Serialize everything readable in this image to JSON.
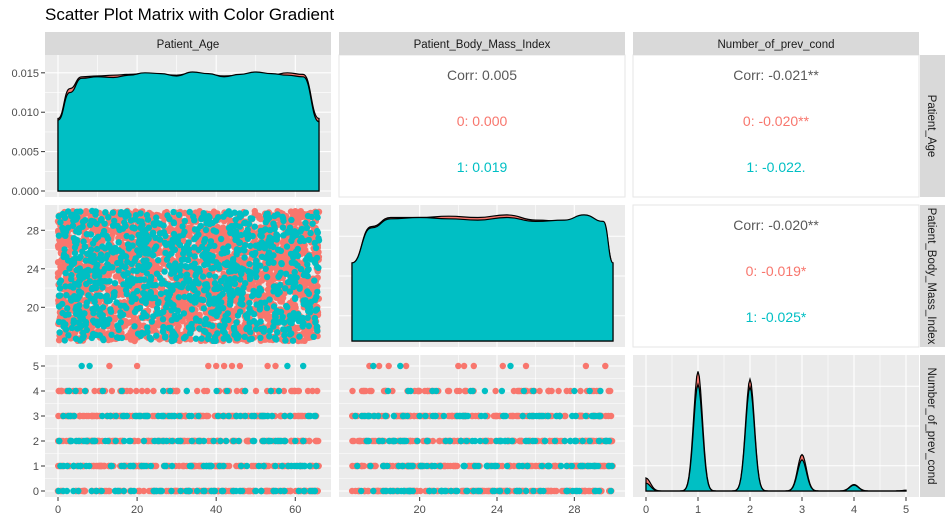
{
  "title": "Scatter Plot Matrix with Color Gradient",
  "colors": {
    "group0": "#F8766D",
    "group1": "#00BFC4",
    "panel_bg": "#EBEBEB",
    "strip_bg": "#D9D9D9",
    "grid": "#FFFFFF",
    "corr_overall": "#595959"
  },
  "variables": [
    "Patient_Age",
    "Patient_Body_Mass_Index",
    "Number_of_prev_cond"
  ],
  "chart_data": {
    "type": "scatter",
    "title": "Scatter Plot Matrix with Color Gradient",
    "groups": [
      "0",
      "1"
    ],
    "legend": "none",
    "grid": true,
    "axes": {
      "Patient_Age": {
        "range": [
          0,
          66
        ],
        "ticks": [
          "0",
          "20",
          "40",
          "60"
        ],
        "tick_values": [
          0,
          20,
          40,
          60
        ]
      },
      "Patient_Body_Mass_Index": {
        "range": [
          16.5,
          30
        ],
        "ticks": [
          "20",
          "24",
          "28"
        ],
        "tick_values": [
          20,
          24,
          28
        ]
      },
      "Number_of_prev_cond": {
        "range": [
          0,
          5
        ],
        "ticks": [
          "0",
          "1",
          "2",
          "3",
          "4",
          "5"
        ],
        "tick_values": [
          0,
          1,
          2,
          3,
          4,
          5
        ]
      }
    },
    "density_y_axis": {
      "range": [
        0,
        0.0165
      ],
      "ticks": [
        "0.000",
        "0.005",
        "0.010",
        "0.015"
      ],
      "tick_values": [
        0,
        0.005,
        0.01,
        0.015
      ]
    },
    "densities": {
      "Patient_Age": {
        "x": [
          0,
          3,
          6,
          10,
          14,
          18,
          22,
          26,
          30,
          34,
          38,
          42,
          46,
          50,
          54,
          58,
          62,
          66
        ],
        "group0": [
          0.0092,
          0.013,
          0.0145,
          0.0146,
          0.0147,
          0.0148,
          0.0149,
          0.0148,
          0.0147,
          0.015,
          0.0148,
          0.0146,
          0.0147,
          0.0149,
          0.0147,
          0.015,
          0.0148,
          0.0092
        ],
        "group1": [
          0.009,
          0.0125,
          0.0143,
          0.0145,
          0.0144,
          0.0147,
          0.015,
          0.0149,
          0.0146,
          0.0151,
          0.0149,
          0.0145,
          0.0148,
          0.0151,
          0.0149,
          0.0147,
          0.0145,
          0.0088
        ]
      },
      "Patient_Body_Mass_Index": {
        "x": [
          16.5,
          17.5,
          18.5,
          20,
          21.5,
          23,
          24.5,
          26,
          27.5,
          28.5,
          29.5,
          30
        ],
        "group0": [
          0.6,
          0.88,
          0.95,
          0.95,
          0.96,
          0.95,
          0.97,
          0.93,
          0.92,
          0.96,
          0.9,
          0.6
        ],
        "group1": [
          0.6,
          0.87,
          0.94,
          0.95,
          0.94,
          0.93,
          0.95,
          0.92,
          0.93,
          0.97,
          0.92,
          0.6
        ]
      },
      "Number_of_prev_cond": {
        "counts_group0": {
          "0": 0.1,
          "1": 0.92,
          "2": 0.86,
          "3": 0.28,
          "4": 0.05,
          "5": 0.005
        },
        "counts_group1": {
          "0": 0.06,
          "1": 0.82,
          "2": 0.8,
          "3": 0.24,
          "4": 0.045,
          "5": 0.005
        }
      }
    },
    "correlations": [
      {
        "pair": [
          "Patient_Age",
          "Patient_Body_Mass_Index"
        ],
        "overall": "Corr: 0.005",
        "group0": "0: 0.000",
        "group1": "1: 0.019"
      },
      {
        "pair": [
          "Patient_Age",
          "Number_of_prev_cond"
        ],
        "overall": "Corr: -0.021**",
        "group0": "0: -0.020**",
        "group1": "1: -0.022."
      },
      {
        "pair": [
          "Patient_Body_Mass_Index",
          "Number_of_prev_cond"
        ],
        "overall": "Corr: -0.020**",
        "group0": "0: -0.019*",
        "group1": "1: -0.025*"
      }
    ],
    "scatter_prev_cond_levels": [
      0,
      1,
      2,
      3,
      4,
      5
    ],
    "sparse_points": {
      "age_at_5": {
        "group0": [
          13,
          20,
          38,
          40,
          42,
          44,
          46,
          53,
          55
        ],
        "group1": [
          6,
          8,
          58,
          62
        ]
      },
      "bmi_at_5": {
        "group0": [
          17.4,
          17.9,
          18.4,
          19.3,
          22.0,
          22.3,
          22.8,
          24.3,
          25.5,
          28.6,
          29.6
        ],
        "group1": [
          17.6,
          19.0,
          24.7
        ]
      }
    }
  }
}
